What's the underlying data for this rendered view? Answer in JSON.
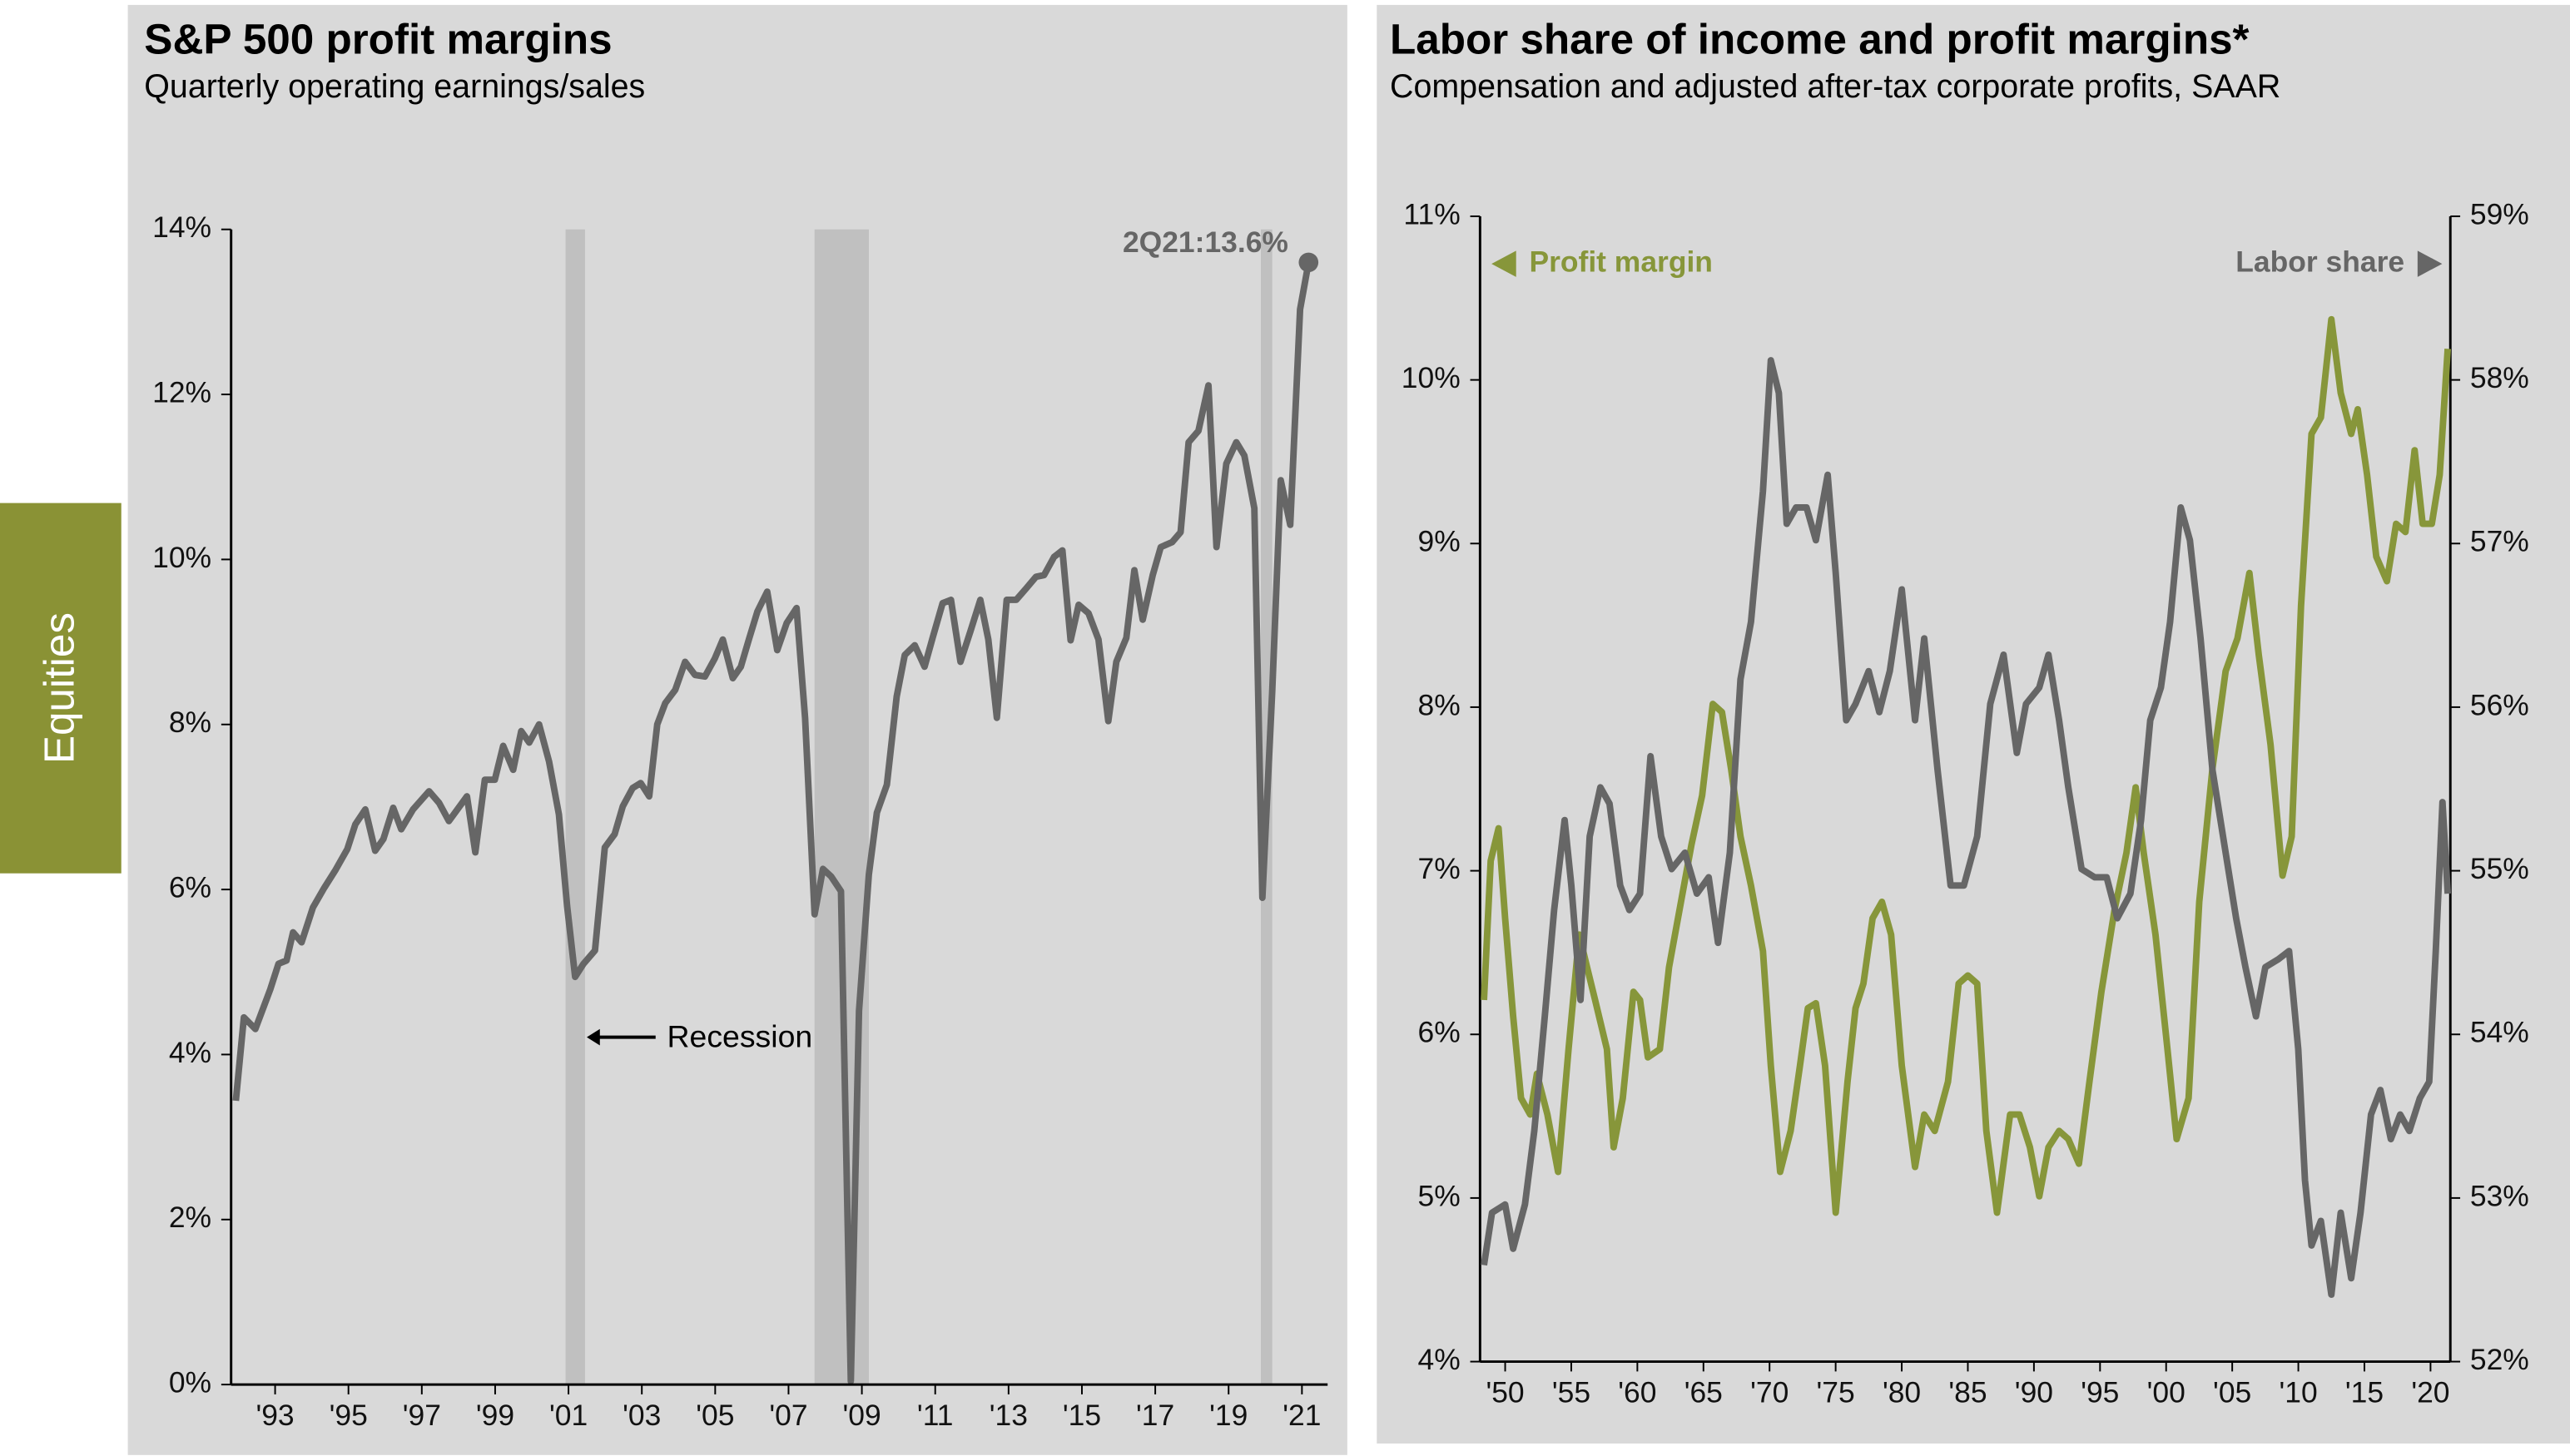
{
  "sidebar": "Equities",
  "chart_data": [
    {
      "type": "line",
      "title": "S&P 500 profit margins",
      "subtitle": "Quarterly operating earnings/sales",
      "color": "#666666",
      "xlim": [
        1991.8,
        2021.7
      ],
      "xticks": [
        {
          "value": 1993,
          "label": "'93"
        },
        {
          "value": 1995,
          "label": "'95"
        },
        {
          "value": 1997,
          "label": "'97"
        },
        {
          "value": 1999,
          "label": "'99"
        },
        {
          "value": 2001,
          "label": "'01"
        },
        {
          "value": 2003,
          "label": "'03"
        },
        {
          "value": 2005,
          "label": "'05"
        },
        {
          "value": 2007,
          "label": "'07"
        },
        {
          "value": 2009,
          "label": "'09"
        },
        {
          "value": 2011,
          "label": "'11"
        },
        {
          "value": 2013,
          "label": "'13"
        },
        {
          "value": 2015,
          "label": "'15"
        },
        {
          "value": 2017,
          "label": "'17"
        },
        {
          "value": 2019,
          "label": "'19"
        },
        {
          "value": 2021,
          "label": "'21"
        }
      ],
      "ylim": [
        0,
        14
      ],
      "yticks": [
        {
          "value": 0,
          "label": "0%"
        },
        {
          "value": 2,
          "label": "2%"
        },
        {
          "value": 4,
          "label": "4%"
        },
        {
          "value": 6,
          "label": "6%"
        },
        {
          "value": 8,
          "label": "8%"
        },
        {
          "value": 10,
          "label": "10%"
        },
        {
          "value": 12,
          "label": "12%"
        },
        {
          "value": 14,
          "label": "14%"
        }
      ],
      "recessions": [
        [
          2000.92,
          2001.45
        ],
        [
          2007.71,
          2009.19
        ],
        [
          2019.88,
          2020.19
        ]
      ],
      "annotations": [
        "2Q21:13.6%",
        "Recession"
      ],
      "x": [
        1991.93,
        1992.15,
        1992.46,
        1992.87,
        1993.09,
        1993.31,
        1993.49,
        1993.72,
        1994.03,
        1994.34,
        1994.65,
        1994.97,
        1995.19,
        1995.46,
        1995.73,
        1995.95,
        1996.22,
        1996.44,
        1996.76,
        1997.2,
        1997.47,
        1997.74,
        1998.23,
        1998.46,
        1998.72,
        1998.99,
        1999.22,
        1999.49,
        1999.71,
        1999.93,
        2000.2,
        2000.47,
        2000.74,
        2000.96,
        2001.18,
        2001.41,
        2001.72,
        2001.99,
        2002.26,
        2002.48,
        2002.75,
        2002.97,
        2003.2,
        2003.42,
        2003.64,
        2003.91,
        2004.18,
        2004.45,
        2004.72,
        2004.99,
        2005.21,
        2005.48,
        2005.7,
        2005.92,
        2006.15,
        2006.42,
        2006.69,
        2006.95,
        2007.22,
        2007.45,
        2007.71,
        2007.94,
        2008.16,
        2008.43,
        2008.7,
        2008.92,
        2009.19,
        2009.41,
        2009.68,
        2009.95,
        2010.17,
        2010.44,
        2010.71,
        2010.93,
        2011.2,
        2011.43,
        2011.69,
        2011.96,
        2012.23,
        2012.45,
        2012.68,
        2012.95,
        2013.21,
        2013.48,
        2013.75,
        2013.97,
        2014.24,
        2014.47,
        2014.69,
        2014.91,
        2015.18,
        2015.45,
        2015.72,
        2015.94,
        2016.21,
        2016.43,
        2016.66,
        2016.93,
        2017.15,
        2017.46,
        2017.69,
        2017.91,
        2018.18,
        2018.45,
        2018.67,
        2018.94,
        2019.21,
        2019.43,
        2019.7,
        2019.92,
        2020.19,
        2020.42,
        2020.68,
        2020.95,
        2021.18
      ],
      "values": [
        3.44,
        4.45,
        4.31,
        4.79,
        5.1,
        5.14,
        5.48,
        5.36,
        5.78,
        6.02,
        6.24,
        6.49,
        6.79,
        6.97,
        6.47,
        6.61,
        6.99,
        6.73,
        6.97,
        7.19,
        7.05,
        6.83,
        7.13,
        6.45,
        7.33,
        7.33,
        7.74,
        7.45,
        7.92,
        7.78,
        8.0,
        7.55,
        6.91,
        5.8,
        4.94,
        5.1,
        5.26,
        6.51,
        6.67,
        7.01,
        7.23,
        7.29,
        7.13,
        8.0,
        8.26,
        8.42,
        8.76,
        8.6,
        8.58,
        8.8,
        9.03,
        8.56,
        8.7,
        9.03,
        9.37,
        9.61,
        8.9,
        9.23,
        9.41,
        8.08,
        5.7,
        6.25,
        6.16,
        5.98,
        0.04,
        4.53,
        6.18,
        6.93,
        7.27,
        8.34,
        8.84,
        8.96,
        8.7,
        9.05,
        9.47,
        9.51,
        8.76,
        9.13,
        9.51,
        9.03,
        8.08,
        9.51,
        9.51,
        9.65,
        9.79,
        9.81,
        10.03,
        10.11,
        9.02,
        9.45,
        9.35,
        9.03,
        8.04,
        8.76,
        9.05,
        9.87,
        9.27,
        9.81,
        10.15,
        10.21,
        10.33,
        11.42,
        11.56,
        12.11,
        10.15,
        11.16,
        11.42,
        11.26,
        10.62,
        5.9,
        8.4,
        10.96,
        10.42,
        13.03,
        13.6
      ]
    },
    {
      "type": "line",
      "title": "Labor share of income and profit margins*",
      "subtitle": "Compensation and adjusted after-tax corporate profits, SAAR",
      "xlim": [
        1948.1,
        2021.5
      ],
      "xticks": [
        {
          "value": 1950,
          "label": "'50"
        },
        {
          "value": 1955,
          "label": "'55"
        },
        {
          "value": 1960,
          "label": "'60"
        },
        {
          "value": 1965,
          "label": "'65"
        },
        {
          "value": 1970,
          "label": "'70"
        },
        {
          "value": 1975,
          "label": "'75"
        },
        {
          "value": 1980,
          "label": "'80"
        },
        {
          "value": 1985,
          "label": "'85"
        },
        {
          "value": 1990,
          "label": "'90"
        },
        {
          "value": 1995,
          "label": "'95"
        },
        {
          "value": 2000,
          "label": "'00"
        },
        {
          "value": 2005,
          "label": "'05"
        },
        {
          "value": 2010,
          "label": "'10"
        },
        {
          "value": 2015,
          "label": "'15"
        },
        {
          "value": 2020,
          "label": "'20"
        }
      ],
      "ylim": [
        4,
        11
      ],
      "yticks": [
        {
          "value": 4,
          "label": "4%"
        },
        {
          "value": 5,
          "label": "5%"
        },
        {
          "value": 6,
          "label": "6%"
        },
        {
          "value": 7,
          "label": "7%"
        },
        {
          "value": 8,
          "label": "8%"
        },
        {
          "value": 9,
          "label": "9%"
        },
        {
          "value": 10,
          "label": "10%"
        },
        {
          "value": 11,
          "label": "11%"
        }
      ],
      "y2lim": [
        52,
        59
      ],
      "y2ticks": [
        {
          "value": 52,
          "label": "52%"
        },
        {
          "value": 53,
          "label": "53%"
        },
        {
          "value": 54,
          "label": "54%"
        },
        {
          "value": 55,
          "label": "55%"
        },
        {
          "value": 56,
          "label": "56%"
        },
        {
          "value": 57,
          "label": "57%"
        },
        {
          "value": 58,
          "label": "58%"
        },
        {
          "value": 59,
          "label": "59%"
        }
      ],
      "series": [
        {
          "name": "Profit margin",
          "color": "#87963a",
          "x": [
            1948.4,
            1948.9,
            1949.5,
            1950,
            1950.6,
            1951.2,
            1951.9,
            1952.4,
            1953.2,
            1954,
            1954.8,
            1955.6,
            1956.2,
            1956.8,
            1957.7,
            1958.2,
            1958.9,
            1959.7,
            1960.2,
            1960.8,
            1961.7,
            1962.4,
            1963.3,
            1964.1,
            1964.9,
            1965.7,
            1966.4,
            1967.1,
            1967.8,
            1968.6,
            1969.5,
            1970.1,
            1970.8,
            1971.6,
            1972.3,
            1972.9,
            1973.5,
            1974.2,
            1975,
            1975.9,
            1976.5,
            1977.1,
            1977.8,
            1978.5,
            1979.2,
            1980,
            1981,
            1981.7,
            1982.5,
            1983.5,
            1984.3,
            1985,
            1985.7,
            1986.4,
            1987.2,
            1988.2,
            1988.9,
            1989.7,
            1990.4,
            1991.1,
            1991.9,
            1992.6,
            1993.4,
            1994.2,
            1995.1,
            1996.1,
            1997,
            1997.7,
            1998.3,
            1999.2,
            2000.1,
            2000.8,
            2001.7,
            2002.5,
            2003.5,
            2004.5,
            2005.4,
            2006.3,
            2007,
            2007.9,
            2008.8,
            2009.5,
            2010.2,
            2011,
            2011.7,
            2012.5,
            2013.2,
            2014,
            2014.5,
            2015.2,
            2015.9,
            2016.7,
            2017.4,
            2018.1,
            2018.8,
            2019.4,
            2020.1,
            2020.7,
            2021.3
          ],
          "values": [
            6.21,
            7.06,
            7.26,
            6.71,
            6.11,
            5.61,
            5.51,
            5.76,
            5.51,
            5.16,
            5.91,
            6.61,
            6.41,
            6.21,
            5.91,
            5.31,
            5.61,
            6.26,
            6.21,
            5.86,
            5.91,
            6.41,
            6.81,
            7.16,
            7.46,
            8.02,
            7.97,
            7.62,
            7.21,
            6.91,
            6.51,
            5.81,
            5.16,
            5.41,
            5.81,
            6.16,
            6.19,
            5.81,
            4.91,
            5.71,
            6.16,
            6.31,
            6.71,
            6.81,
            6.61,
            5.81,
            5.19,
            5.51,
            5.41,
            5.71,
            6.31,
            6.36,
            6.31,
            5.41,
            4.91,
            5.51,
            5.51,
            5.31,
            5.01,
            5.31,
            5.41,
            5.36,
            5.21,
            5.71,
            6.26,
            6.76,
            7.11,
            7.51,
            7.11,
            6.61,
            5.91,
            5.36,
            5.61,
            6.81,
            7.62,
            8.22,
            8.42,
            8.82,
            8.32,
            7.77,
            6.97,
            7.21,
            8.62,
            9.67,
            9.77,
            10.37,
            9.92,
            9.67,
            9.82,
            9.42,
            8.92,
            8.77,
            9.12,
            9.07,
            9.57,
            9.12,
            9.12,
            9.42,
            10.19
          ]
        },
        {
          "name": "Labor share",
          "color": "#666666",
          "axis": "y2",
          "x": [
            1948.4,
            1949,
            1950,
            1950.6,
            1951.5,
            1952.2,
            1953,
            1953.7,
            1954.5,
            1955,
            1955.7,
            1956.4,
            1957.2,
            1957.9,
            1958.7,
            1959.4,
            1960.2,
            1961,
            1961.8,
            1962.6,
            1963.6,
            1964.5,
            1965.4,
            1966.1,
            1967,
            1967.8,
            1968.6,
            1969.5,
            1970.1,
            1970.7,
            1971.3,
            1972,
            1972.8,
            1973.5,
            1974.4,
            1975,
            1975.8,
            1976.5,
            1977.5,
            1978.3,
            1979.1,
            1980,
            1981,
            1981.7,
            1982.7,
            1983.7,
            1984.7,
            1985.7,
            1986.7,
            1987.7,
            1988.7,
            1989.4,
            1990.4,
            1991.1,
            1991.9,
            1992.6,
            1993.6,
            1994.6,
            1995.5,
            1996.3,
            1997.3,
            1998.1,
            1998.8,
            1999.6,
            2000.3,
            2001.1,
            2001.8,
            2002.6,
            2003.5,
            2004.5,
            2005.3,
            2006,
            2006.8,
            2007.5,
            2008.5,
            2009.3,
            2010,
            2010.5,
            2011,
            2011.7,
            2012.5,
            2013.2,
            2014,
            2014.7,
            2015.5,
            2016.2,
            2017,
            2017.7,
            2018.4,
            2019.2,
            2019.9,
            2020.4,
            2020.9,
            2021.3
          ],
          "values": [
            52.59,
            52.91,
            52.96,
            52.69,
            52.96,
            53.41,
            54.11,
            54.76,
            55.31,
            54.91,
            54.21,
            55.21,
            55.51,
            55.41,
            54.91,
            54.76,
            54.86,
            55.7,
            55.21,
            55.01,
            55.11,
            54.86,
            54.96,
            54.56,
            55.11,
            56.17,
            56.52,
            57.32,
            58.12,
            57.92,
            57.12,
            57.22,
            57.22,
            57.02,
            57.42,
            56.82,
            55.92,
            56.02,
            56.22,
            55.97,
            56.22,
            56.72,
            55.92,
            56.42,
            55.62,
            54.91,
            54.91,
            55.21,
            56.02,
            56.32,
            55.72,
            56.02,
            56.12,
            56.32,
            55.92,
            55.51,
            55.01,
            54.96,
            54.96,
            54.71,
            54.86,
            55.31,
            55.92,
            56.12,
            56.52,
            57.22,
            57.02,
            56.42,
            55.62,
            55.11,
            54.71,
            54.41,
            54.11,
            54.41,
            54.46,
            54.51,
            53.91,
            53.11,
            52.71,
            52.86,
            52.41,
            52.91,
            52.51,
            52.91,
            53.51,
            53.66,
            53.36,
            53.51,
            53.41,
            53.61,
            53.71,
            54.51,
            55.42,
            54.86
          ]
        }
      ]
    }
  ]
}
